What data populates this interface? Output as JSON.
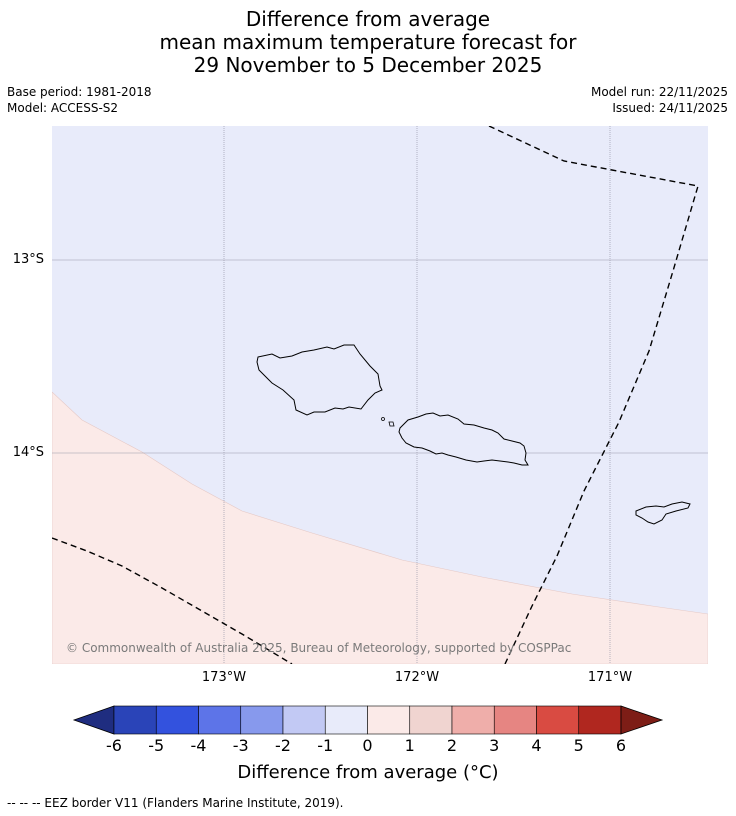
{
  "title": {
    "line1": "Difference from average",
    "line2": "mean maximum temperature forecast for",
    "line3": "29 November to 5 December 2025"
  },
  "meta": {
    "base_period": "Base period: 1981-2018",
    "model": "Model: ACCESS-S2",
    "model_run": "Model run: 22/11/2025",
    "issued": "Issued: 24/11/2025"
  },
  "map": {
    "copyright": "© Commonwealth of Australia 2025, Bureau of Meteorology, supported by COSPPac",
    "lat_labels": [
      "13°S",
      "14°S"
    ],
    "lon_labels": [
      "173°W",
      "172°W",
      "171°W"
    ],
    "fill_colors": {
      "negative": "#e8ebfa",
      "positive": "#fbeae8"
    },
    "region": "Samoa"
  },
  "colorbar": {
    "ticks": [
      "-6",
      "-5",
      "-4",
      "-3",
      "-2",
      "-1",
      "0",
      "1",
      "2",
      "3",
      "4",
      "5",
      "6"
    ],
    "colors": [
      "#1f2d80",
      "#2a44b8",
      "#3352de",
      "#5d74e8",
      "#8799ed",
      "#c2c9f4",
      "#e8ebfa",
      "#fbeae8",
      "#f0d4d0",
      "#efaeaa",
      "#e68582",
      "#d94b42",
      "#b0271f",
      "#7d1d16"
    ],
    "label": "Difference from average (°C)"
  },
  "footnote": "--  --  -- EEZ border V11 (Flanders Marine Institute, 2019)."
}
